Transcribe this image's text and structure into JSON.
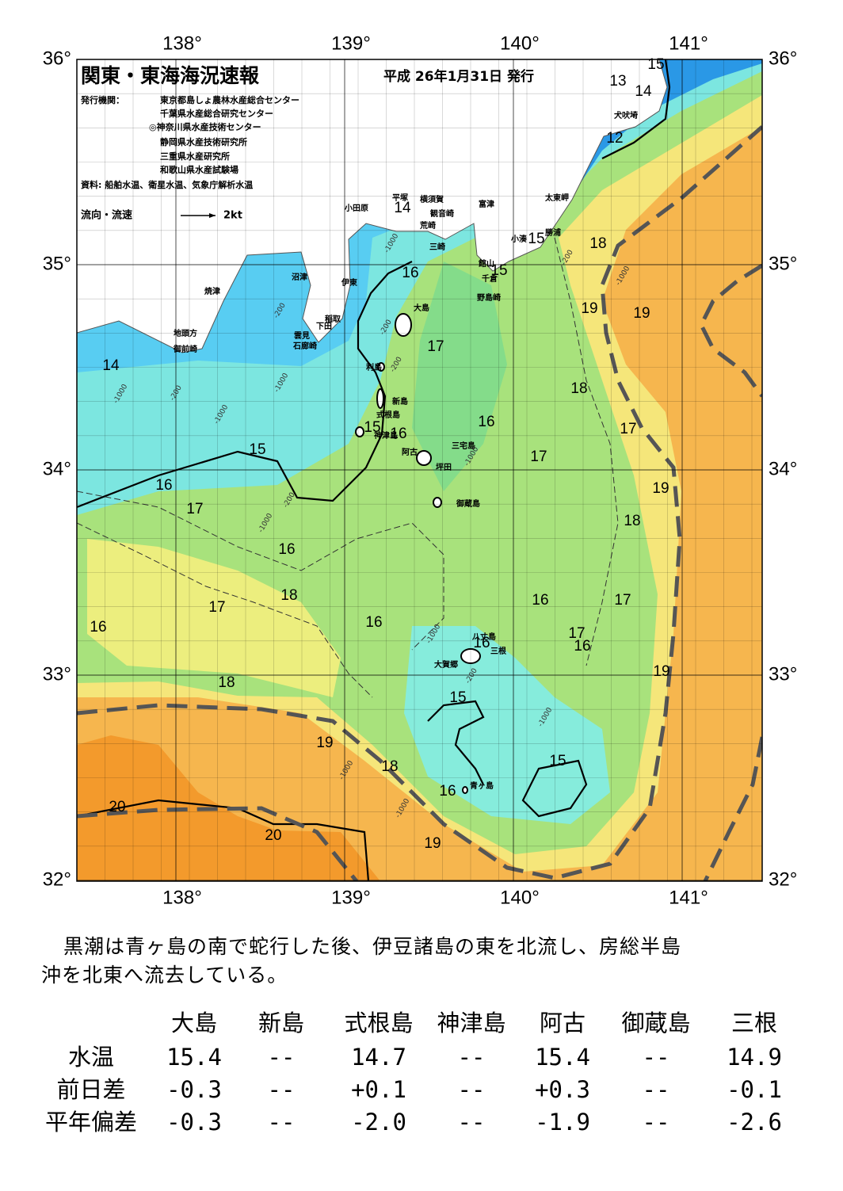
{
  "header": {
    "title": "関東・東海海況速報",
    "date": "平成 26年1月31日 発行",
    "issuers_label": "発行機関：",
    "issuers": [
      "東京都島しょ農林水産総合センター",
      "千葉県水産総合研究センター",
      "◎神奈川県水産技術センター",
      "静岡県水産技術研究所",
      "三重県水産研究所",
      "和歌山県水産試験場"
    ],
    "source": "資料: 船舶水温、衛星水温、気象庁解析水温",
    "vector_legend": {
      "label": "流向・流速",
      "speed": "2kt"
    }
  },
  "map": {
    "lon_ticks": [
      {
        "value": 138,
        "label": "138°"
      },
      {
        "value": 139,
        "label": "139°"
      },
      {
        "value": 140,
        "label": "140°"
      },
      {
        "value": 141,
        "label": "141°"
      }
    ],
    "lat_ticks": [
      {
        "value": 36,
        "label": "36°"
      },
      {
        "value": 35,
        "label": "35°"
      },
      {
        "value": 34,
        "label": "34°"
      },
      {
        "value": 33,
        "label": "33°"
      },
      {
        "value": 32,
        "label": "32°"
      }
    ],
    "contour_labels": [
      15,
      13,
      14,
      12,
      14,
      15,
      18,
      16,
      15,
      19,
      19,
      17,
      14,
      18,
      16,
      17,
      15,
      16,
      15,
      17,
      19,
      16,
      17,
      18,
      16,
      18,
      16,
      17,
      17,
      16,
      16,
      17,
      16,
      16,
      19,
      18,
      15,
      19,
      15,
      18,
      16,
      20,
      20,
      19
    ],
    "place_names": [
      "犬吠埼",
      "小田原",
      "平塚",
      "横須賀",
      "観音崎",
      "荒崎",
      "富津",
      "太東岬",
      "勝浦",
      "小湊",
      "三崎",
      "館山",
      "千倉",
      "野島崎",
      "沼津",
      "伊東",
      "焼津",
      "大島",
      "稲取",
      "下田",
      "雲見",
      "石廊崎",
      "地頭方",
      "御前崎",
      "利島",
      "新島",
      "式根島",
      "神津島",
      "三宅島",
      "阿古",
      "坪田",
      "御蔵島",
      "八丈島",
      "三根",
      "大賀郷",
      "青ヶ島"
    ],
    "depth_labels": [
      "-1000",
      "-200",
      "-1000",
      "-1000",
      "-200",
      "-200",
      "-1000",
      "-1000",
      "-200",
      "-200",
      "-1000",
      "-200",
      "-1000",
      "-1000",
      "-200",
      "-1000",
      "-1000",
      "-1000"
    ]
  },
  "description": [
    "黒潮は青ヶ島の南で蛇行した後、伊豆諸島の東を北流し、房総半島",
    "沖を北東へ流去している。"
  ],
  "table": {
    "columns": [
      "大島",
      "新島",
      "式根島",
      "神津島",
      "阿古",
      "御蔵島",
      "三根"
    ],
    "rows": [
      {
        "label": "水温",
        "values": [
          "15.4",
          "--",
          "14.7",
          "--",
          "15.4",
          "--",
          "14.9"
        ]
      },
      {
        "label": "前日差",
        "values": [
          "-0.3",
          "--",
          "+0.1",
          "--",
          "+0.3",
          "--",
          "-0.1"
        ]
      },
      {
        "label": "平年偏差",
        "values": [
          "-0.3",
          "--",
          "-2.0",
          "--",
          "-1.9",
          "--",
          "-2.6"
        ]
      }
    ]
  }
}
